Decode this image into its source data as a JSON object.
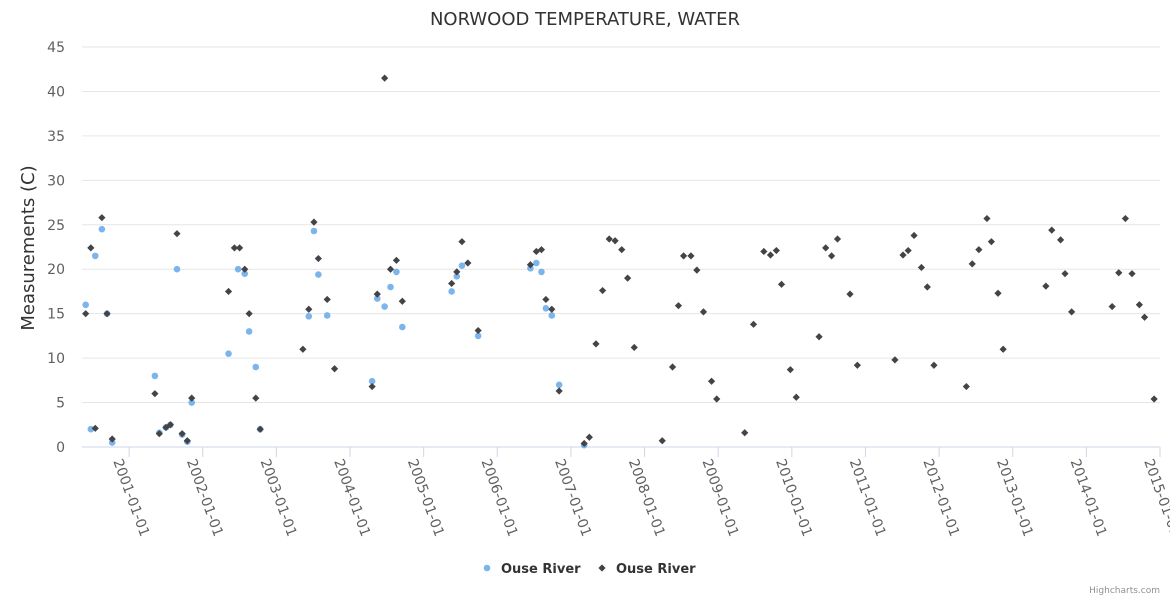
{
  "chart_data": {
    "type": "scatter",
    "title": "NORWOOD TEMPERATURE, WATER",
    "ylabel": "Measurements (C)",
    "xlabel": "",
    "ylim": [
      0,
      45
    ],
    "y_ticks": [
      "0",
      "5",
      "10",
      "15",
      "20",
      "25",
      "30",
      "35",
      "40",
      "45"
    ],
    "x_ticks": [
      "2001-01-01",
      "2002-01-01",
      "2003-01-01",
      "2004-01-01",
      "2005-01-01",
      "2006-01-01",
      "2007-01-01",
      "2008-01-01",
      "2009-01-01",
      "2010-01-01",
      "2011-01-01",
      "2012-01-01",
      "2013-01-01",
      "2014-01-01",
      "2015-01-01"
    ],
    "x_tick_decimal": [
      2001,
      2002,
      2003,
      2004,
      2005,
      2006,
      2007,
      2008,
      2009,
      2010,
      2011,
      2012,
      2013,
      2014,
      2015
    ],
    "xlim": [
      2000.36,
      2015.0
    ],
    "legend_position": "bottom-center",
    "series": [
      {
        "name": "Ouse River",
        "marker": "circle",
        "color": "#7cb5ec",
        "points": [
          [
            2000.41,
            16.0
          ],
          [
            2000.48,
            2.0
          ],
          [
            2000.54,
            21.5
          ],
          [
            2000.63,
            24.5
          ],
          [
            2000.7,
            15.0
          ],
          [
            2000.77,
            0.5
          ],
          [
            2001.35,
            8.0
          ],
          [
            2001.41,
            1.6
          ],
          [
            2001.5,
            2.2
          ],
          [
            2001.56,
            2.5
          ],
          [
            2001.65,
            20.0
          ],
          [
            2001.72,
            1.4
          ],
          [
            2001.79,
            0.6
          ],
          [
            2001.85,
            5.0
          ],
          [
            2002.35,
            10.5
          ],
          [
            2002.48,
            20.0
          ],
          [
            2002.57,
            19.5
          ],
          [
            2002.63,
            13.0
          ],
          [
            2002.72,
            9.0
          ],
          [
            2002.78,
            2.0
          ],
          [
            2003.44,
            14.7
          ],
          [
            2003.51,
            24.3
          ],
          [
            2003.57,
            19.4
          ],
          [
            2003.69,
            14.8
          ],
          [
            2004.3,
            7.4
          ],
          [
            2004.37,
            16.7
          ],
          [
            2004.47,
            15.8
          ],
          [
            2004.55,
            18.0
          ],
          [
            2004.63,
            19.7
          ],
          [
            2004.71,
            13.5
          ],
          [
            2005.38,
            17.5
          ],
          [
            2005.45,
            19.2
          ],
          [
            2005.52,
            20.4
          ],
          [
            2005.74,
            12.5
          ],
          [
            2006.45,
            20.1
          ],
          [
            2006.53,
            20.7
          ],
          [
            2006.6,
            19.7
          ],
          [
            2006.66,
            15.6
          ],
          [
            2006.74,
            14.8
          ],
          [
            2006.84,
            7.0
          ],
          [
            2007.18,
            0.2
          ]
        ]
      },
      {
        "name": "Ouse River",
        "marker": "diamond",
        "color": "#434348",
        "points": [
          [
            2000.41,
            15.0
          ],
          [
            2000.48,
            22.4
          ],
          [
            2000.54,
            2.1
          ],
          [
            2000.63,
            25.8
          ],
          [
            2000.7,
            15.0
          ],
          [
            2000.77,
            0.9
          ],
          [
            2001.35,
            6.0
          ],
          [
            2001.41,
            1.5
          ],
          [
            2001.5,
            2.2
          ],
          [
            2001.56,
            2.5
          ],
          [
            2001.65,
            24.0
          ],
          [
            2001.72,
            1.5
          ],
          [
            2001.79,
            0.7
          ],
          [
            2001.85,
            5.5
          ],
          [
            2002.35,
            17.5
          ],
          [
            2002.43,
            22.4
          ],
          [
            2002.5,
            22.4
          ],
          [
            2002.57,
            20.0
          ],
          [
            2002.63,
            15.0
          ],
          [
            2002.72,
            5.5
          ],
          [
            2002.78,
            2.0
          ],
          [
            2003.36,
            11.0
          ],
          [
            2003.44,
            15.5
          ],
          [
            2003.51,
            25.3
          ],
          [
            2003.57,
            21.2
          ],
          [
            2003.69,
            16.6
          ],
          [
            2003.79,
            8.8
          ],
          [
            2004.3,
            6.8
          ],
          [
            2004.37,
            17.2
          ],
          [
            2004.47,
            41.5
          ],
          [
            2004.55,
            20.0
          ],
          [
            2004.63,
            21.0
          ],
          [
            2004.71,
            16.4
          ],
          [
            2005.38,
            18.4
          ],
          [
            2005.45,
            19.7
          ],
          [
            2005.52,
            23.1
          ],
          [
            2005.6,
            20.7
          ],
          [
            2005.74,
            13.1
          ],
          [
            2006.45,
            20.5
          ],
          [
            2006.53,
            22.0
          ],
          [
            2006.6,
            22.2
          ],
          [
            2006.66,
            16.6
          ],
          [
            2006.74,
            15.5
          ],
          [
            2006.84,
            6.3
          ],
          [
            2007.18,
            0.4
          ],
          [
            2007.25,
            1.1
          ],
          [
            2007.34,
            11.6
          ],
          [
            2007.43,
            17.6
          ],
          [
            2007.52,
            23.4
          ],
          [
            2007.6,
            23.2
          ],
          [
            2007.69,
            22.2
          ],
          [
            2007.77,
            19.0
          ],
          [
            2007.86,
            11.2
          ],
          [
            2008.24,
            0.7
          ],
          [
            2008.38,
            9.0
          ],
          [
            2008.46,
            15.9
          ],
          [
            2008.53,
            21.5
          ],
          [
            2008.63,
            21.5
          ],
          [
            2008.71,
            19.9
          ],
          [
            2008.8,
            15.2
          ],
          [
            2008.91,
            7.4
          ],
          [
            2008.98,
            5.4
          ],
          [
            2009.36,
            1.6
          ],
          [
            2009.48,
            13.8
          ],
          [
            2009.62,
            22.0
          ],
          [
            2009.71,
            21.6
          ],
          [
            2009.79,
            22.1
          ],
          [
            2009.86,
            18.3
          ],
          [
            2009.98,
            8.7
          ],
          [
            2010.06,
            5.6
          ],
          [
            2010.37,
            12.4
          ],
          [
            2010.46,
            22.4
          ],
          [
            2010.54,
            21.5
          ],
          [
            2010.62,
            23.4
          ],
          [
            2010.79,
            17.2
          ],
          [
            2010.89,
            9.2
          ],
          [
            2011.4,
            9.8
          ],
          [
            2011.51,
            21.6
          ],
          [
            2011.58,
            22.1
          ],
          [
            2011.66,
            23.8
          ],
          [
            2011.76,
            20.2
          ],
          [
            2011.84,
            18.0
          ],
          [
            2011.93,
            9.2
          ],
          [
            2012.37,
            6.8
          ],
          [
            2012.45,
            20.6
          ],
          [
            2012.54,
            22.2
          ],
          [
            2012.65,
            25.7
          ],
          [
            2012.71,
            23.1
          ],
          [
            2012.8,
            17.3
          ],
          [
            2012.87,
            11.0
          ],
          [
            2013.45,
            18.1
          ],
          [
            2013.53,
            24.4
          ],
          [
            2013.65,
            23.3
          ],
          [
            2013.71,
            19.5
          ],
          [
            2013.8,
            15.2
          ],
          [
            2014.35,
            15.8
          ],
          [
            2014.44,
            19.6
          ],
          [
            2014.53,
            25.7
          ],
          [
            2014.62,
            19.5
          ],
          [
            2014.72,
            16.0
          ],
          [
            2014.79,
            14.6
          ],
          [
            2014.92,
            5.4
          ]
        ]
      }
    ]
  },
  "credit": "Highcharts.com"
}
